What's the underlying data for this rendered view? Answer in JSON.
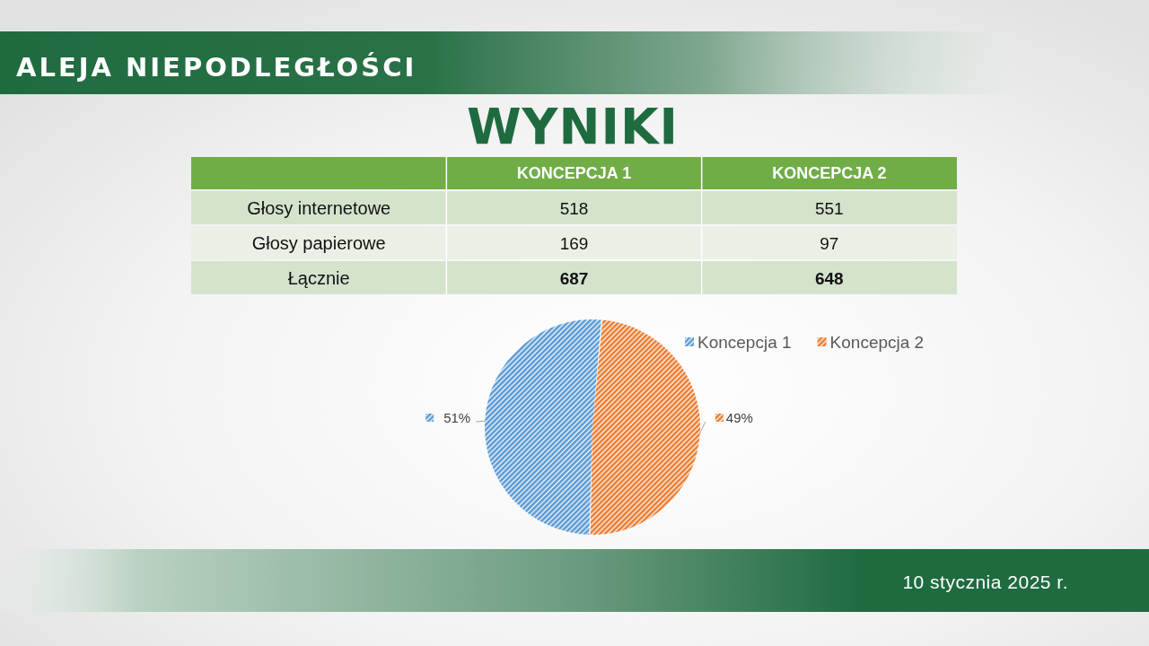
{
  "chart_data": [
    {
      "type": "other",
      "title": "ALEJA NIEPODLEGŁOŚCI",
      "subtitle": "WYNIKI",
      "categories": [
        "KONCEPCJA 1",
        "KONCEPCJA 2"
      ],
      "series": [
        {
          "name": "Głosy internetowe",
          "values": [
            518,
            551
          ]
        },
        {
          "name": "Głosy papierowe",
          "values": [
            169,
            97
          ]
        },
        {
          "name": "Łącznie",
          "values": [
            687,
            648
          ]
        }
      ],
      "data_labels": true,
      "annotations": [
        "10 stycznia 2025 r."
      ]
    },
    {
      "type": "pie",
      "categories": [
        "Koncepcja 1",
        "Koncepcja 2"
      ],
      "values": [
        51,
        49
      ],
      "colors": [
        "#5b9bd5",
        "#ed7d31"
      ],
      "value_labels": [
        "51%",
        "49%"
      ],
      "legend": "top right"
    }
  ]
}
